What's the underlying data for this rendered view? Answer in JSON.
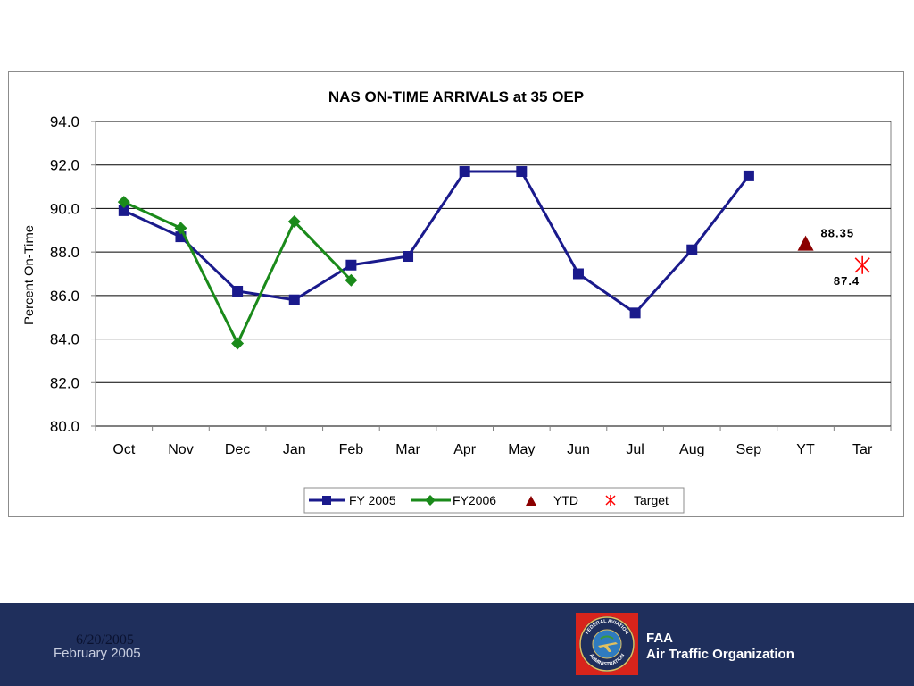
{
  "chart_data": {
    "type": "line",
    "title": "NAS ON-TIME ARRIVALS at 35 OEP",
    "ylabel": "Percent On-Time",
    "xlabel": "",
    "ylim": [
      80.0,
      94.0
    ],
    "yticks": [
      "94.0",
      "92.0",
      "90.0",
      "88.0",
      "86.0",
      "84.0",
      "82.0",
      "80.0"
    ],
    "categories": [
      "Oct",
      "Nov",
      "Dec",
      "Jan",
      "Feb",
      "Mar",
      "Apr",
      "May",
      "Jun",
      "Jul",
      "Aug",
      "Sep",
      "YT",
      "Tar"
    ],
    "grid": "horizontal",
    "legend_position": "bottom",
    "series": [
      {
        "name": "FY 2005",
        "legend_label": "FY 2005",
        "color": "#1a1a8c",
        "marker": "square",
        "values": [
          89.9,
          88.7,
          86.2,
          85.8,
          87.4,
          87.8,
          91.7,
          91.7,
          87.0,
          85.2,
          88.1,
          91.5,
          null,
          null
        ]
      },
      {
        "name": "FY2006",
        "legend_label": "FY2006",
        "color": "#1a8a1a",
        "marker": "diamond",
        "values": [
          90.3,
          89.1,
          83.8,
          89.4,
          86.7,
          null,
          null,
          null,
          null,
          null,
          null,
          null,
          null,
          null
        ]
      },
      {
        "name": "YTD",
        "legend_label": "YTD",
        "color": "#8b0000",
        "marker": "triangle",
        "values": [
          null,
          null,
          null,
          null,
          null,
          null,
          null,
          null,
          null,
          null,
          null,
          null,
          88.35,
          null
        ],
        "data_label": "88.35"
      },
      {
        "name": "Target",
        "legend_label": "Target",
        "color": "#ff0000",
        "marker": "asterisk",
        "values": [
          null,
          null,
          null,
          null,
          null,
          null,
          null,
          null,
          null,
          null,
          null,
          null,
          null,
          87.4
        ],
        "data_label": "87.4"
      }
    ]
  },
  "footer": {
    "date": "6/20/2005",
    "month": "February 2005",
    "org_line1": "FAA",
    "org_line2": "Air Traffic Organization",
    "seal_text_top": "FEDERAL AVIATION",
    "seal_text_bottom": "ADMINISTRATION"
  },
  "colors": {
    "footer_bg": "#1f2f5c",
    "seal_bg": "#d8241b"
  }
}
